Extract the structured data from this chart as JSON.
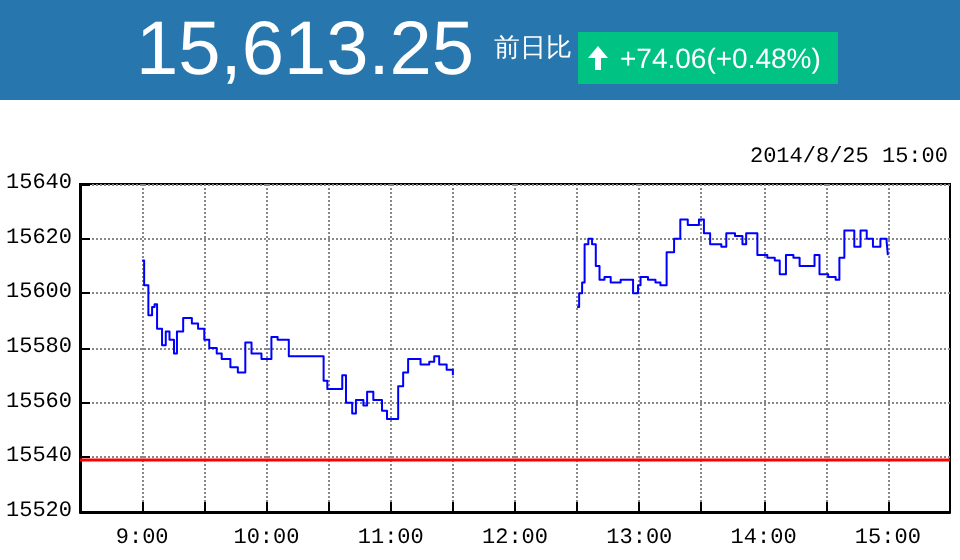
{
  "chart_data": {
    "type": "step",
    "annotations": [
      "15,613.25",
      "前日比",
      "+74.06(+0.48%)",
      "2014/8/25 15:00"
    ],
    "series": [
      {
        "color": "#0000ff",
        "x": [
          9.0,
          9.016,
          9.05,
          9.08,
          9.1,
          9.12,
          9.16,
          9.19,
          9.22,
          9.256,
          9.28,
          9.33,
          9.4,
          9.45,
          9.5,
          9.54,
          9.6,
          9.64,
          9.71,
          9.77,
          9.83,
          9.88,
          9.96,
          10.0,
          10.04,
          10.09,
          10.18,
          10.33,
          10.43,
          10.46,
          10.49,
          10.59,
          10.61,
          10.64,
          10.69,
          10.72,
          10.78,
          10.81,
          10.86,
          10.93,
          10.97,
          11.02,
          11.06,
          11.1,
          11.14,
          11.18,
          11.24,
          11.31,
          11.35,
          11.39,
          11.45,
          11.5
        ],
        "values": [
          15612,
          15603,
          15592,
          15595,
          15596,
          15587,
          15581,
          15586,
          15583,
          15578,
          15586,
          15591,
          15589,
          15587,
          15583,
          15580,
          15578,
          15576,
          15573,
          15571,
          15582,
          15578,
          15576,
          15576,
          15584,
          15583,
          15577,
          15577,
          15577,
          15568,
          15565,
          15565,
          15570,
          15560,
          15556,
          15561,
          15559,
          15564,
          15561,
          15557,
          15554,
          15554,
          15566,
          15571,
          15576,
          15576,
          15574,
          15575,
          15577,
          15574,
          15572,
          15570
        ]
      },
      {
        "color": "#0000ff",
        "x": [
          12.5,
          12.516,
          12.54,
          12.56,
          12.59,
          12.62,
          12.65,
          12.68,
          12.72,
          12.77,
          12.85,
          12.91,
          12.95,
          12.99,
          13.01,
          13.07,
          13.13,
          13.17,
          13.22,
          13.28,
          13.33,
          13.39,
          13.45,
          13.48,
          13.52,
          13.57,
          13.66,
          13.7,
          13.77,
          13.83,
          13.86,
          13.9,
          13.95,
          14.03,
          14.09,
          14.13,
          14.18,
          14.24,
          14.29,
          14.34,
          14.41,
          14.45,
          14.52,
          14.58,
          14.61,
          14.65,
          14.71,
          14.73,
          14.78,
          14.83,
          14.88,
          14.94,
          14.99,
          15.0
        ],
        "values": [
          15595,
          15600,
          15604,
          15618,
          15620,
          15618,
          15610,
          15605,
          15606,
          15604,
          15605,
          15605,
          15600,
          15603,
          15606,
          15605,
          15604,
          15603,
          15615,
          15620,
          15627,
          15625,
          15625,
          15627,
          15622,
          15618,
          15617,
          15622,
          15621,
          15618,
          15622,
          15622,
          15614,
          15613,
          15612,
          15607,
          15614,
          15613,
          15610,
          15610,
          15614,
          15607,
          15606,
          15605,
          15613,
          15623,
          15623,
          15617,
          15623,
          15620,
          15617,
          15620,
          15619,
          15614
        ]
      }
    ],
    "xlim": [
      8.5,
      15.5
    ],
    "xticks": [
      {
        "value": 9,
        "label": "9:00"
      },
      {
        "value": 9.5,
        "label": null
      },
      {
        "value": 10,
        "label": "10:00"
      },
      {
        "value": 10.5,
        "label": null
      },
      {
        "value": 11,
        "label": "11:00"
      },
      {
        "value": 11.5,
        "label": null
      },
      {
        "value": 12,
        "label": "12:00"
      },
      {
        "value": 12.5,
        "label": null
      },
      {
        "value": 13,
        "label": "13:00"
      },
      {
        "value": 13.5,
        "label": null
      },
      {
        "value": 14,
        "label": "14:00"
      },
      {
        "value": 14.5,
        "label": null
      },
      {
        "value": 15,
        "label": "15:00"
      }
    ],
    "ylim": [
      15520,
      15640
    ],
    "yticks": [
      15520,
      15540,
      15560,
      15580,
      15600,
      15620,
      15640
    ],
    "ref_lines": [
      {
        "axis": "y",
        "value": 15539,
        "color": "#ff0000"
      }
    ],
    "grid": true,
    "line_style": "solid",
    "marker": "none"
  }
}
